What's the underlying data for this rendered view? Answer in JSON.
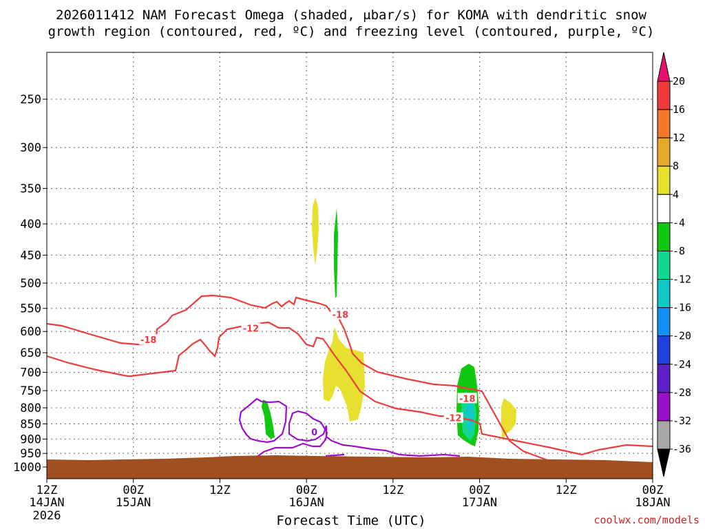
{
  "chart_data": {
    "type": "time-height contour",
    "title_line1": "2026011412 NAM Forecast Omega (shaded, μbar/s) for KOMA with dendritic snow",
    "title_line2": "growth region (contoured, red, ºC) and freezing level (contoured, purple, ºC)",
    "xlabel": "Forecast Time (UTC)",
    "credit": "coolwx.com/models",
    "y_ticks": [
      "250",
      "300",
      "350",
      "400",
      "450",
      "500",
      "550",
      "600",
      "650",
      "700",
      "750",
      "800",
      "850",
      "900",
      "950",
      "1000"
    ],
    "y_values": [
      250,
      300,
      350,
      400,
      450,
      500,
      550,
      600,
      650,
      700,
      750,
      800,
      850,
      900,
      950,
      1000
    ],
    "ylim": [
      200,
      1025
    ],
    "x_ticks": [
      {
        "hour": 0,
        "top": "12Z",
        "mid": "14JAN",
        "bottom": "2026"
      },
      {
        "hour": 12,
        "top": "00Z",
        "mid": "15JAN",
        "bottom": ""
      },
      {
        "hour": 24,
        "top": "12Z",
        "mid": "",
        "bottom": ""
      },
      {
        "hour": 36,
        "top": "00Z",
        "mid": "16JAN",
        "bottom": ""
      },
      {
        "hour": 48,
        "top": "12Z",
        "mid": "",
        "bottom": ""
      },
      {
        "hour": 60,
        "top": "00Z",
        "mid": "17JAN",
        "bottom": ""
      },
      {
        "hour": 72,
        "top": "12Z",
        "mid": "",
        "bottom": ""
      },
      {
        "hour": 84,
        "top": "00Z",
        "mid": "18JAN",
        "bottom": ""
      }
    ],
    "xlim_hours": [
      0,
      84
    ],
    "colorbar": {
      "labels": [
        "20",
        "16",
        "12",
        "8",
        "4",
        "-4",
        "-8",
        "-12",
        "-16",
        "-20",
        "-24",
        "-28",
        "-32",
        "-36"
      ],
      "colors": [
        "#e8106e",
        "#f03c3c",
        "#f07828",
        "#e8a828",
        "#e8e030",
        "#ffffff",
        "#10c810",
        "#10d890",
        "#10c8c8",
        "#1090f0",
        "#2040e0",
        "#6020c8",
        "#9810c8",
        "#a8a8a8",
        "#000000"
      ]
    },
    "contour_labels": [
      {
        "text": "-18",
        "hour": 14.1,
        "hPa": 619,
        "color": "#ee3b3b"
      },
      {
        "text": "-12",
        "hour": 28.3,
        "hPa": 593,
        "color": "#ee3b3b"
      },
      {
        "text": "-18",
        "hour": 40.7,
        "hPa": 563,
        "color": "#ee3b3b"
      },
      {
        "text": "-18",
        "hour": 58.3,
        "hPa": 772,
        "color": "#ee3b3b"
      },
      {
        "text": "-12",
        "hour": 56.4,
        "hPa": 831,
        "color": "#ee3b3b"
      },
      {
        "text": "0",
        "hour": 37.1,
        "hPa": 876,
        "color": "#9910cc"
      }
    ],
    "shaded_regions": [
      {
        "name": "yellow-omega-400",
        "value_band": "4 to 8",
        "hours": [
          36.3,
          37.2
        ],
        "hPa": [
          365,
          470
        ]
      },
      {
        "name": "green-omega-400",
        "value_band": "-4 to -8",
        "hours": [
          38.7,
          39.3
        ],
        "hPa": [
          375,
          530
        ]
      },
      {
        "name": "yellow-omega-700",
        "value_band": "4 to 8",
        "hours": [
          38.0,
          44.8
        ],
        "hPa": [
          610,
          845
        ]
      },
      {
        "name": "green-omega-850",
        "value_band": "-4 to -8",
        "hours": [
          30.3,
          31.6
        ],
        "hPa": [
          780,
          915
        ]
      },
      {
        "name": "green-omega-800",
        "value_band": "-4 to -12",
        "hours": [
          56.5,
          60.0
        ],
        "hPa": [
          690,
          930
        ]
      },
      {
        "name": "yellow-omega-820",
        "value_band": "4 to 8",
        "hours": [
          62.2,
          64.5
        ],
        "hPa": [
          780,
          900
        ]
      }
    ]
  }
}
